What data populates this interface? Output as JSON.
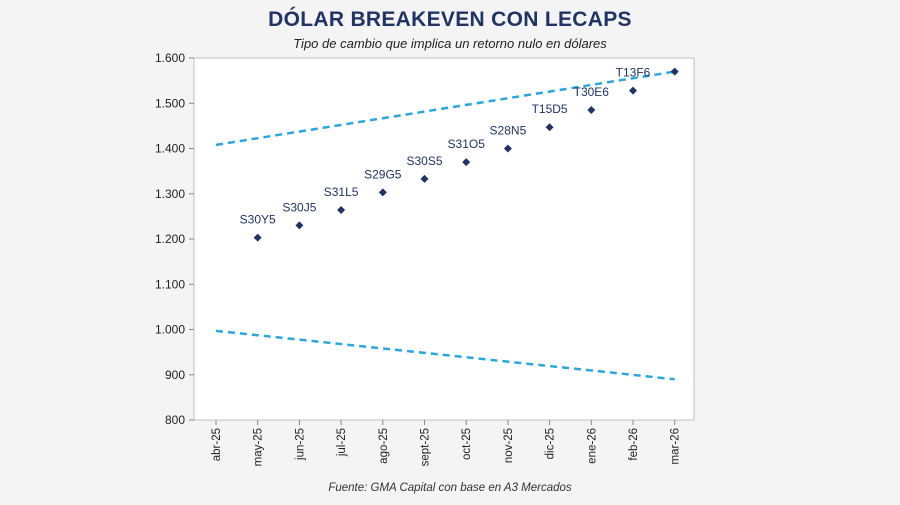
{
  "header": {
    "title": "DÓLAR BREAKEVEN CON LECAPS",
    "subtitle": "Tipo de cambio que implica un retorno nulo en dólares"
  },
  "footer": {
    "source": "Fuente: GMA Capital con base en A3 Mercados"
  },
  "colors": {
    "band": "#29a8e0",
    "points": "#1f3366",
    "title": "#1f3366"
  },
  "chart_data": {
    "type": "scatter",
    "title": "DÓLAR BREAKEVEN CON LECAPS",
    "subtitle": "Tipo de cambio que implica un retorno nulo en dólares",
    "xlabel": "",
    "ylabel": "",
    "categories": [
      "abr-25",
      "may-25",
      "jun-25",
      "jul-25",
      "ago-25",
      "sept-25",
      "oct-25",
      "nov-25",
      "dic-25",
      "ene-26",
      "feb-26",
      "mar-26"
    ],
    "ylim": [
      800,
      1600
    ],
    "yticks": [
      800,
      900,
      1000,
      1100,
      1200,
      1300,
      1400,
      1500,
      1600
    ],
    "ytick_labels": [
      "800",
      "900",
      "1.000",
      "1.100",
      "1.200",
      "1.300",
      "1.400",
      "1.500",
      "1.600"
    ],
    "grid": false,
    "legend": "none",
    "series": [
      {
        "type": "scatter",
        "points": [
          {
            "x": "may-25",
            "y": 1203,
            "label": "S30Y5"
          },
          {
            "x": "jun-25",
            "y": 1230,
            "label": "S30J5"
          },
          {
            "x": "jul-25",
            "y": 1264,
            "label": "S31L5"
          },
          {
            "x": "ago-25",
            "y": 1303,
            "label": "S29G5"
          },
          {
            "x": "sept-25",
            "y": 1333,
            "label": "S30S5"
          },
          {
            "x": "oct-25",
            "y": 1370,
            "label": "S31O5"
          },
          {
            "x": "nov-25",
            "y": 1400,
            "label": "S28N5"
          },
          {
            "x": "dic-25",
            "y": 1447,
            "label": "T15D5"
          },
          {
            "x": "ene-26",
            "y": 1485,
            "label": "T30E6"
          },
          {
            "x": "feb-26",
            "y": 1528,
            "label": "T13F6"
          },
          {
            "x": "mar-26",
            "y": 1570,
            "label": ""
          }
        ]
      },
      {
        "type": "line",
        "style": "dashed",
        "x": [
          "abr-25",
          "mar-26"
        ],
        "values": [
          1408,
          1570
        ]
      },
      {
        "type": "line",
        "style": "dashed",
        "x": [
          "abr-25",
          "mar-26"
        ],
        "values": [
          997,
          890
        ]
      }
    ]
  }
}
